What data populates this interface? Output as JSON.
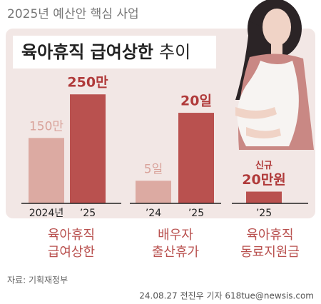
{
  "header": "2025년 예산안 핵심 사업",
  "title": {
    "bold": "육아휴직 급여상한",
    "rest": "추이"
  },
  "source": "자료: 기획재정부",
  "credit": "24.08.27 전진우 기자 618tue@newsis.com",
  "chart_data": [
    {
      "type": "bar",
      "caption": [
        "육아휴직",
        "급여상한"
      ],
      "categories": [
        "2024년",
        "’25"
      ],
      "values": [
        150,
        250
      ],
      "value_labels": [
        "150만",
        "250만"
      ],
      "colors": [
        "#dcaaa2",
        "#b9514f"
      ],
      "ylim": [
        0,
        270
      ]
    },
    {
      "type": "bar",
      "caption": [
        "배우자",
        "출산휴가"
      ],
      "categories": [
        "’24",
        "’25"
      ],
      "values": [
        5,
        20
      ],
      "value_labels": [
        "5일",
        "20일"
      ],
      "colors": [
        "#dcaaa2",
        "#b9514f"
      ],
      "ylim": [
        0,
        26
      ]
    },
    {
      "type": "bar",
      "caption": [
        "육아휴직",
        "동료지원금"
      ],
      "annotation": "신규",
      "categories": [
        "’25"
      ],
      "values": [
        20
      ],
      "value_labels": [
        "20만원"
      ],
      "colors": [
        "#b9514f"
      ],
      "ylim": [
        0,
        200
      ]
    }
  ]
}
